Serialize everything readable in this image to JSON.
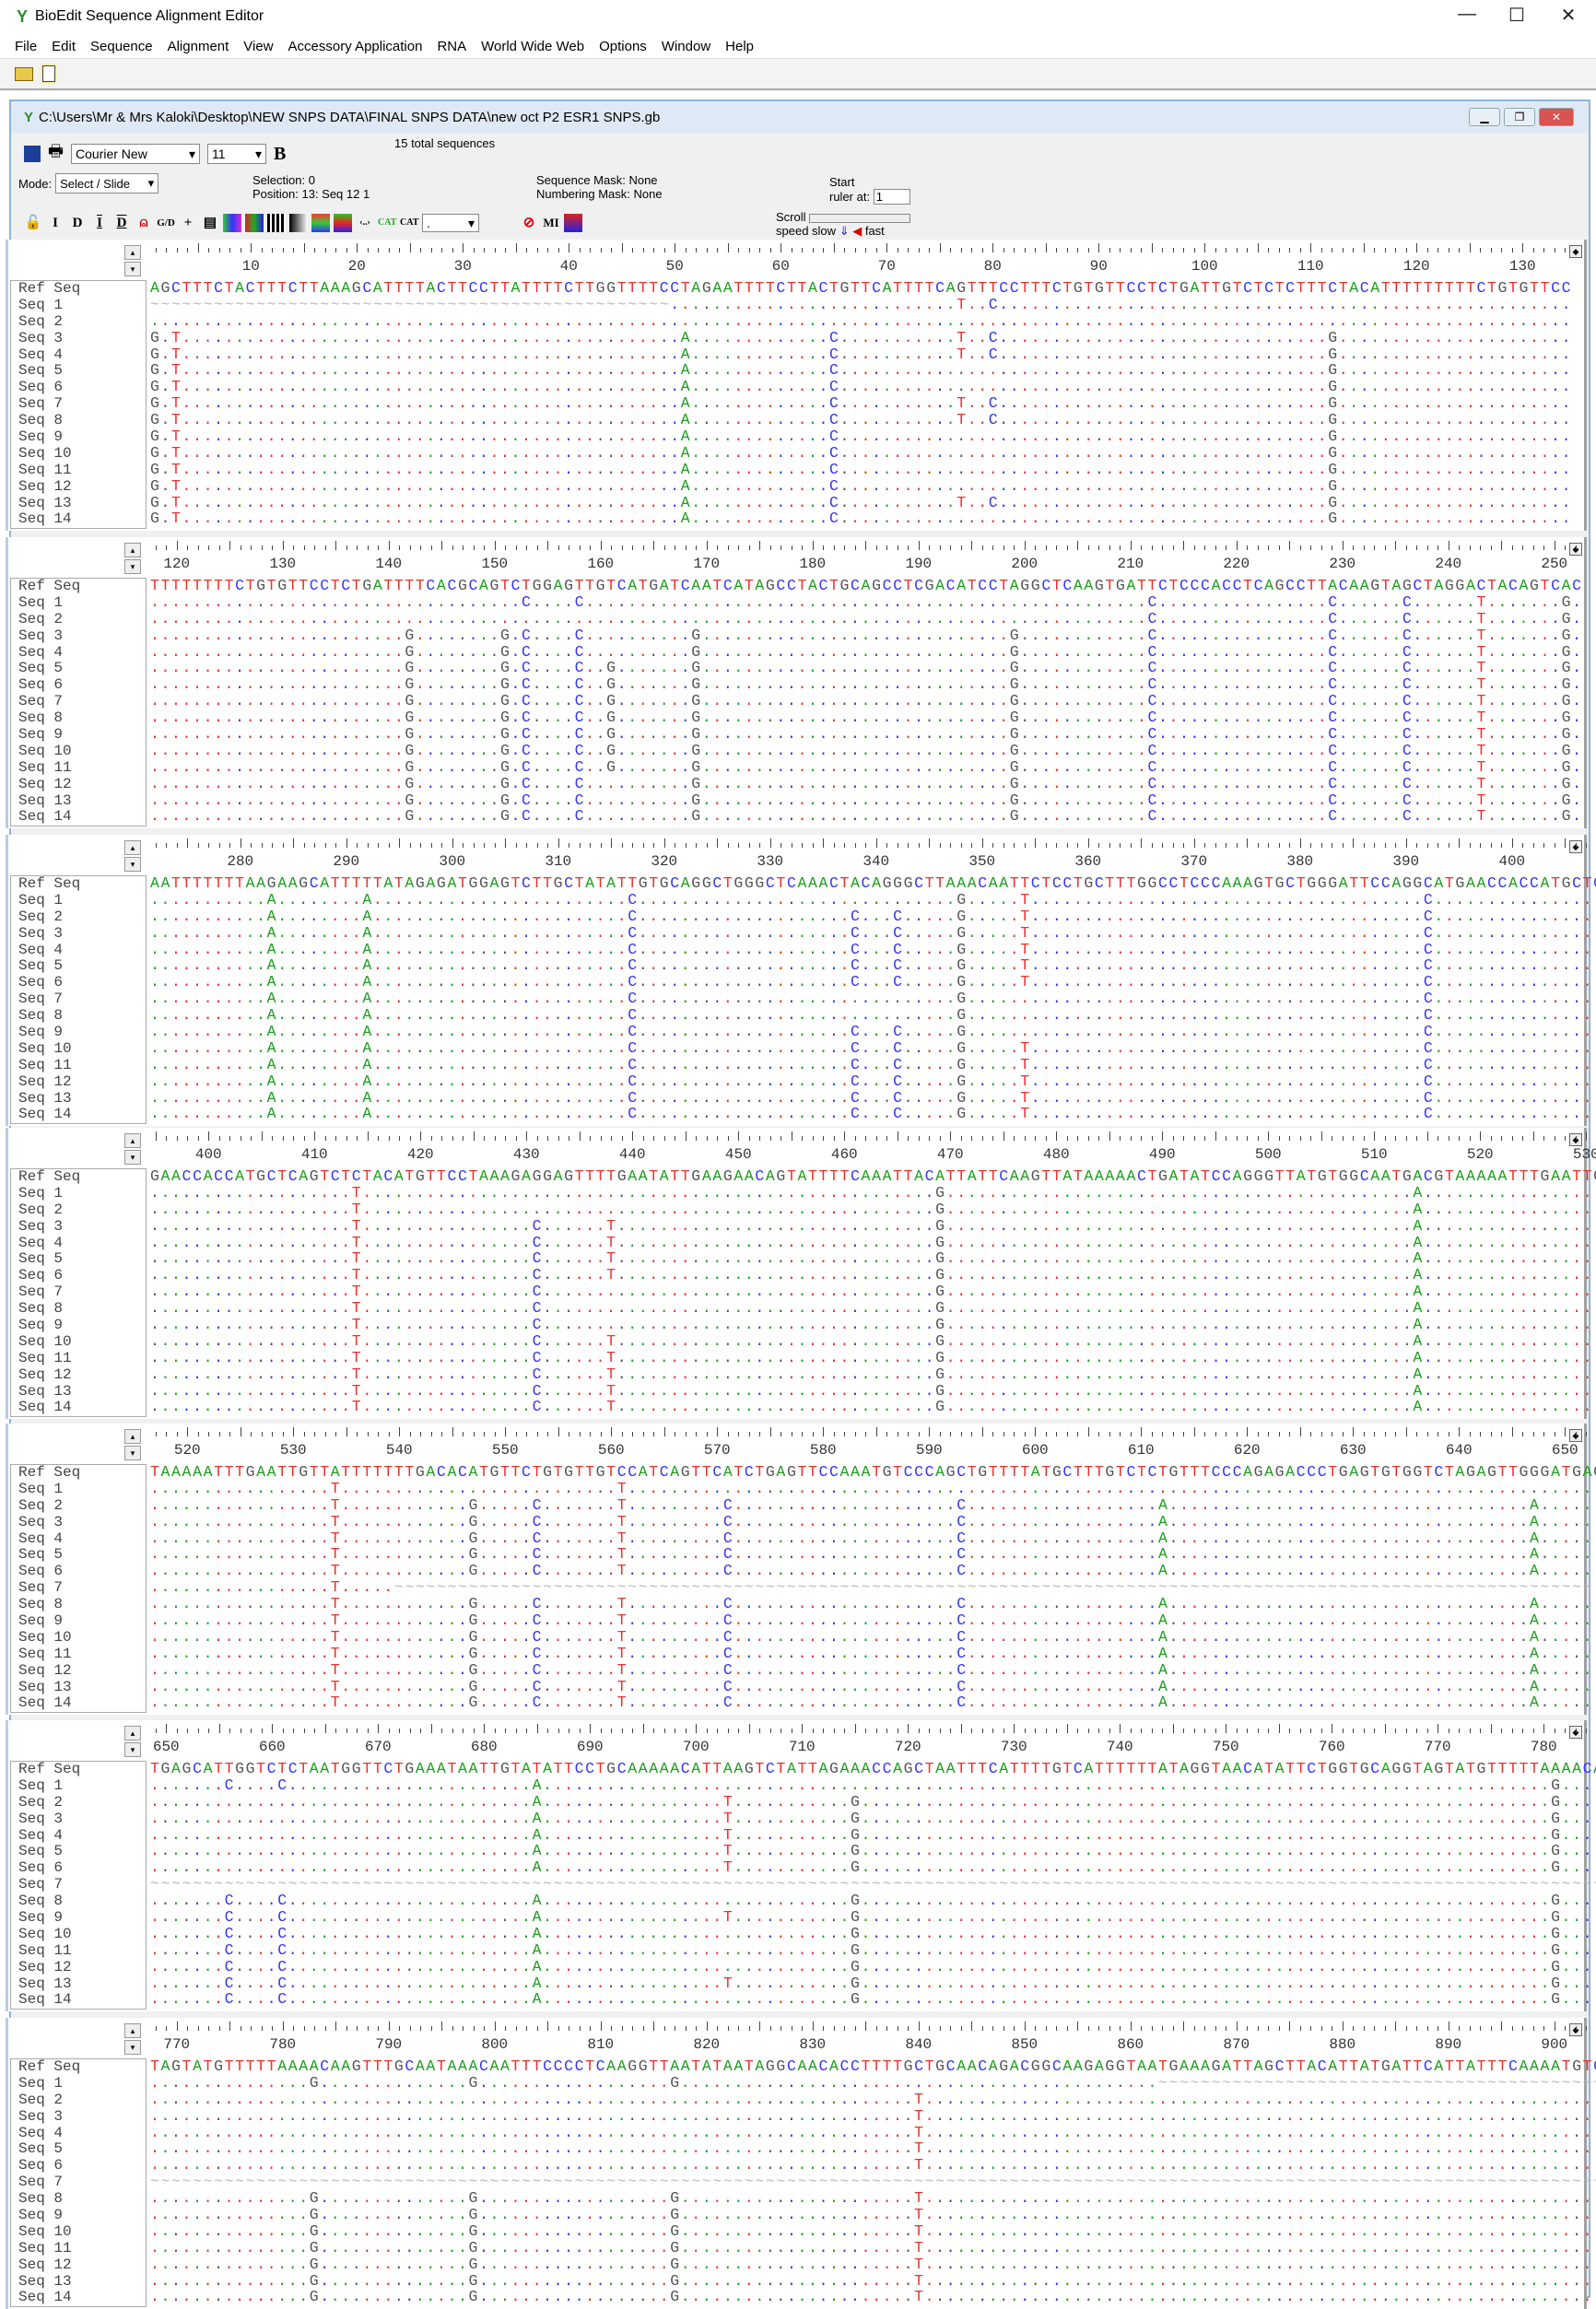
{
  "app": {
    "title": "BioEdit Sequence Alignment Editor",
    "controls": [
      "—",
      "☐",
      "✕"
    ]
  },
  "menu": [
    "File",
    "Edit",
    "Sequence",
    "Alignment",
    "View",
    "Accessory Application",
    "RNA",
    "World Wide Web",
    "Options",
    "Window",
    "Help"
  ],
  "document": {
    "path": "C:\\Users\\Mr & Mrs Kaloki\\Desktop\\NEW SNPS DATA\\FINAL SNPS DATA\\new oct P2 ESR1 SNPS.gb",
    "font": "Courier New",
    "font_size": "11",
    "bold_label": "B",
    "total": "15 total sequences",
    "mode_label": "Mode:",
    "mode": "Select / Slide",
    "selection": "Selection: 0",
    "position": "Position:  13: Seq 12 1",
    "seq_mask": "Sequence Mask: None",
    "num_mask": "Numbering Mask: None",
    "start_ruler_label1": "Start",
    "start_ruler_label2": "ruler at:",
    "start_ruler": "1",
    "scroll1": "Scroll",
    "scroll2": "speed",
    "slow": "slow",
    "fast": "fast"
  },
  "colors": {
    "A": "#1f9e1f",
    "C": "#3535f0",
    "G": "#555555",
    "T": "#e8302c",
    "gap": "#b8b8b8"
  },
  "names": [
    "Ref Seq",
    "Seq 1",
    "Seq 2",
    "Seq 3",
    "Seq 4",
    "Seq 5",
    "Seq 6",
    "Seq 7",
    "Seq 8",
    "Seq 9",
    "Seq 10",
    "Seq 11",
    "Seq 12",
    "Seq 13",
    "Seq 14"
  ],
  "panels": [
    {
      "start": 1,
      "ref": "AGCTTTCTACTTTCTTAAAGCATTTTACTTCCTTATTTTCTTGGTTTTCCTAGAATTTTCTTACTGTTCATTTTCAGTTTCCTTTCTGTGTTCCTCTGATTGTCTCTCTTTCTACATTTTTTTTTCTGTGTTCC",
      "variants": [
        {
          "pos": 1,
          "base": "G",
          "seqs": [
            3,
            4,
            5,
            6,
            7,
            8,
            9,
            10,
            11,
            12,
            13,
            14
          ]
        },
        {
          "pos": 3,
          "base": "T",
          "seqs": [
            3,
            4,
            5,
            6,
            7,
            8,
            9,
            10,
            11,
            12,
            13,
            14
          ]
        },
        {
          "pos": 51,
          "base": "A",
          "seqs": [
            3,
            4,
            5,
            6,
            7,
            8,
            9,
            10,
            11,
            12,
            13,
            14
          ]
        },
        {
          "pos": 65,
          "base": "C",
          "seqs": [
            3,
            4,
            5,
            6,
            7,
            8,
            9,
            10,
            11,
            12,
            13,
            14
          ]
        },
        {
          "pos": 77,
          "base": "T",
          "seqs": [
            1,
            3,
            4,
            7,
            8,
            13
          ]
        },
        {
          "pos": 80,
          "base": "C",
          "seqs": [
            1,
            3,
            4,
            7,
            8,
            13
          ]
        },
        {
          "pos": 112,
          "base": "G",
          "seqs": [
            3,
            4,
            5,
            6,
            7,
            8,
            9,
            10,
            11,
            12,
            13,
            14
          ]
        }
      ],
      "gaps": [
        {
          "seq": 1,
          "from": 1,
          "to": 49
        }
      ]
    },
    {
      "start": 118,
      "ref": "TTTTTTTTCTGTGTTCCTCTGATTTTCACGCAGTCTGGAGTTGTCATGATCAATCATAGCCTACTGCAGCCTCGACATCCTAGGCTCAAGTGATTCTCCCACCTCAGCCTTACAAGTAGCTAGGACTACAGTCAC",
      "variants": [
        {
          "pos": 142,
          "base": "G",
          "seqs": [
            3,
            4,
            5,
            6,
            7,
            8,
            9,
            10,
            11,
            12,
            13,
            14
          ]
        },
        {
          "pos": 151,
          "base": "G",
          "seqs": [
            3,
            4,
            5,
            6,
            7,
            8,
            9,
            10,
            11,
            12,
            13,
            14
          ]
        },
        {
          "pos": 153,
          "base": "C",
          "seqs": [
            1,
            3,
            4,
            5,
            6,
            7,
            8,
            9,
            10,
            11,
            12,
            13,
            14
          ]
        },
        {
          "pos": 158,
          "base": "C",
          "seqs": [
            1,
            3,
            4,
            5,
            6,
            7,
            8,
            9,
            10,
            11,
            12,
            13,
            14
          ]
        },
        {
          "pos": 161,
          "base": "G",
          "seqs": [
            5,
            6,
            7,
            8,
            9,
            10,
            11
          ]
        },
        {
          "pos": 169,
          "base": "G",
          "seqs": [
            3,
            4,
            5,
            6,
            7,
            8,
            9,
            10,
            11,
            12,
            13,
            14
          ]
        },
        {
          "pos": 199,
          "base": "G",
          "seqs": [
            3,
            4,
            5,
            6,
            7,
            8,
            9,
            10,
            11,
            12,
            13,
            14
          ]
        },
        {
          "pos": 212,
          "base": "C",
          "seqs": [
            1,
            2,
            3,
            4,
            5,
            6,
            7,
            8,
            9,
            10,
            11,
            12,
            13,
            14
          ]
        },
        {
          "pos": 229,
          "base": "C",
          "seqs": [
            1,
            2,
            3,
            4,
            5,
            6,
            7,
            8,
            9,
            10,
            11,
            12,
            13,
            14
          ]
        },
        {
          "pos": 236,
          "base": "C",
          "seqs": [
            1,
            2,
            3,
            4,
            5,
            6,
            7,
            8,
            9,
            10,
            11,
            12,
            13,
            14
          ]
        },
        {
          "pos": 243,
          "base": "T",
          "seqs": [
            1,
            2,
            3,
            4,
            5,
            6,
            7,
            8,
            9,
            10,
            11,
            12,
            13,
            14
          ]
        },
        {
          "pos": 251,
          "base": "G",
          "seqs": [
            1,
            2,
            3,
            4,
            5,
            6,
            7,
            8,
            9,
            10,
            11,
            12,
            13,
            14
          ]
        }
      ],
      "gaps": []
    },
    {
      "start": 272,
      "ref": "AATTTTTTTAAGAAGCATTTTTATAGAGATGGAGTCTTGCTATATTGTGCAGGCTGGGCTCAAACTACAGGGCTTAAACAATTCTCCTGCTTTGGCCTCCCAAAGTGCTGGGATTCCAGGCATGAACCACCATGCTC",
      "variants": [
        {
          "pos": 283,
          "base": "A",
          "seqs": [
            1,
            2,
            3,
            4,
            5,
            6,
            7,
            8,
            9,
            10,
            11,
            12,
            13,
            14
          ]
        },
        {
          "pos": 292,
          "base": "A",
          "seqs": [
            1,
            2,
            3,
            4,
            5,
            6,
            7,
            8,
            9,
            10,
            11,
            12,
            13,
            14
          ]
        },
        {
          "pos": 317,
          "base": "C",
          "seqs": [
            1,
            2,
            3,
            4,
            5,
            6,
            7,
            8,
            9,
            10,
            11,
            12,
            13,
            14
          ]
        },
        {
          "pos": 338,
          "base": "C",
          "seqs": [
            2,
            3,
            4,
            5,
            6,
            9,
            10,
            11,
            12,
            13,
            14
          ]
        },
        {
          "pos": 342,
          "base": "C",
          "seqs": [
            2,
            3,
            4,
            5,
            6,
            9,
            10,
            11,
            12,
            13,
            14
          ]
        },
        {
          "pos": 348,
          "base": "G",
          "seqs": [
            1,
            2,
            3,
            4,
            5,
            6,
            7,
            8,
            9,
            10,
            11,
            12,
            13,
            14
          ]
        },
        {
          "pos": 354,
          "base": "T",
          "seqs": [
            1,
            2,
            3,
            4,
            5,
            6,
            10,
            11,
            12,
            13,
            14
          ]
        },
        {
          "pos": 392,
          "base": "C",
          "seqs": [
            1,
            2,
            3,
            4,
            5,
            6,
            7,
            8,
            9,
            10,
            11,
            12,
            13,
            14
          ]
        }
      ],
      "gaps": []
    },
    {
      "start": 395,
      "ref": "GAACCACCATGCTCAGTCTCTACATGTTCCTAAAGAGGAGTTTTGAATATTGAAGAACAGTATTTTCAAATTACATTATTCAAGTTATAAAAACTGATATCCAGGGTTATGTGGCAATGACGTAAAAATTTGAATTG",
      "variants": [
        {
          "pos": 414,
          "base": "T",
          "seqs": [
            1,
            2,
            3,
            4,
            5,
            6,
            7,
            8,
            9,
            10,
            11,
            12,
            13,
            14
          ]
        },
        {
          "pos": 431,
          "base": "C",
          "seqs": [
            3,
            4,
            5,
            6,
            7,
            8,
            9,
            10,
            11,
            12,
            13,
            14
          ]
        },
        {
          "pos": 438,
          "base": "T",
          "seqs": [
            3,
            4,
            5,
            6,
            10,
            11,
            12,
            13,
            14
          ]
        },
        {
          "pos": 469,
          "base": "G",
          "seqs": [
            1,
            2,
            3,
            4,
            5,
            6,
            7,
            8,
            9,
            10,
            11,
            12,
            13,
            14
          ]
        },
        {
          "pos": 514,
          "base": "A",
          "seqs": [
            1,
            2,
            3,
            4,
            5,
            6,
            7,
            8,
            9,
            10,
            11,
            12,
            13,
            14
          ]
        }
      ],
      "gaps": []
    },
    {
      "start": 517,
      "ref": "TAAAAATTTGAATTGTTATTTTTTTGACACATGTTCTGTGTTGTCCATCAGTTCATCTGAGTTCCAAATGTCCCAGCTGTTTTATGCTTTGTCTCTGTTTCCCAGAGACCCTGAGTGTGGTCTAGAGTTGGGATGAG",
      "variants": [
        {
          "pos": 534,
          "base": "T",
          "seqs": [
            1,
            2,
            3,
            4,
            5,
            6,
            7,
            8,
            9,
            10,
            11,
            12,
            13,
            14
          ]
        },
        {
          "pos": 547,
          "base": "G",
          "seqs": [
            2,
            3,
            4,
            5,
            6,
            8,
            9,
            10,
            11,
            12,
            13,
            14
          ]
        },
        {
          "pos": 553,
          "base": "C",
          "seqs": [
            2,
            3,
            4,
            5,
            6,
            8,
            9,
            10,
            11,
            12,
            13,
            14
          ]
        },
        {
          "pos": 561,
          "base": "T",
          "seqs": [
            1,
            2,
            3,
            4,
            5,
            6,
            8,
            9,
            10,
            11,
            12,
            13,
            14
          ]
        },
        {
          "pos": 571,
          "base": "C",
          "seqs": [
            2,
            3,
            4,
            5,
            6,
            8,
            9,
            10,
            11,
            12,
            13,
            14
          ]
        },
        {
          "pos": 593,
          "base": "C",
          "seqs": [
            2,
            3,
            4,
            5,
            6,
            8,
            9,
            10,
            11,
            12,
            13,
            14
          ]
        },
        {
          "pos": 612,
          "base": "A",
          "seqs": [
            2,
            3,
            4,
            5,
            6,
            8,
            9,
            10,
            11,
            12,
            13,
            14
          ]
        },
        {
          "pos": 647,
          "base": "A",
          "seqs": [
            2,
            3,
            4,
            5,
            6,
            8,
            9,
            10,
            11,
            12,
            13,
            14
          ]
        }
      ],
      "gaps": [
        {
          "seq": 7,
          "from": 540,
          "to": 652
        }
      ]
    },
    {
      "start": 649,
      "ref": "TGAGCATTGGTCTCTAATGGTTCTGAAATAATTGTATATTCCTGCAAAAACATTAAGTCTATTAGAAACCAGCTAATTTCATTTTGTCATTTTTTATAGGTAACATATTCTGGTGCAGGTAGTATGTTTTTAAAACAA",
      "variants": [
        {
          "pos": 656,
          "base": "C",
          "seqs": [
            1,
            8,
            9,
            10,
            11,
            12,
            13,
            14
          ]
        },
        {
          "pos": 661,
          "base": "C",
          "seqs": [
            1,
            8,
            9,
            10,
            11,
            12,
            13,
            14
          ]
        },
        {
          "pos": 685,
          "base": "A",
          "seqs": [
            1,
            2,
            3,
            4,
            5,
            6,
            8,
            9,
            10,
            11,
            12,
            13,
            14
          ]
        },
        {
          "pos": 703,
          "base": "T",
          "seqs": [
            2,
            3,
            4,
            5,
            6,
            9,
            13
          ]
        },
        {
          "pos": 715,
          "base": "G",
          "seqs": [
            2,
            3,
            4,
            5,
            6,
            8,
            9,
            10,
            11,
            12,
            13,
            14
          ]
        },
        {
          "pos": 781,
          "base": "G",
          "seqs": [
            1,
            2,
            3,
            4,
            5,
            6,
            8,
            9,
            10,
            11,
            12,
            13,
            14
          ]
        }
      ],
      "gaps": [
        {
          "seq": 7,
          "from": 649,
          "to": 786
        }
      ]
    },
    {
      "start": 768,
      "ref": "TAGTATGTTTTTAAAACAAGTTTGCAATAAACAATTTCCCCTCAAGGTTAATATAATAGGCAACACCTTTTGCTGCAACAGACGGCAAGAGGTAATGAAAGATTAGCTTACATTATGATTCATTATTTCAAAATGTC",
      "variants": [
        {
          "pos": 783,
          "base": "G",
          "seqs": [
            1,
            8,
            9,
            10,
            11,
            12,
            13,
            14
          ]
        },
        {
          "pos": 798,
          "base": "G",
          "seqs": [
            1,
            8,
            9,
            10,
            11,
            12,
            13,
            14
          ]
        },
        {
          "pos": 817,
          "base": "G",
          "seqs": [
            1,
            8,
            9,
            10,
            11,
            12,
            13,
            14
          ]
        },
        {
          "pos": 840,
          "base": "T",
          "seqs": [
            2,
            3,
            4,
            5,
            6,
            8,
            9,
            10,
            11,
            12,
            13,
            14
          ]
        }
      ],
      "gaps": [
        {
          "seq": 1,
          "from": 863,
          "to": 904
        },
        {
          "seq": 7,
          "from": 768,
          "to": 904
        }
      ]
    }
  ]
}
